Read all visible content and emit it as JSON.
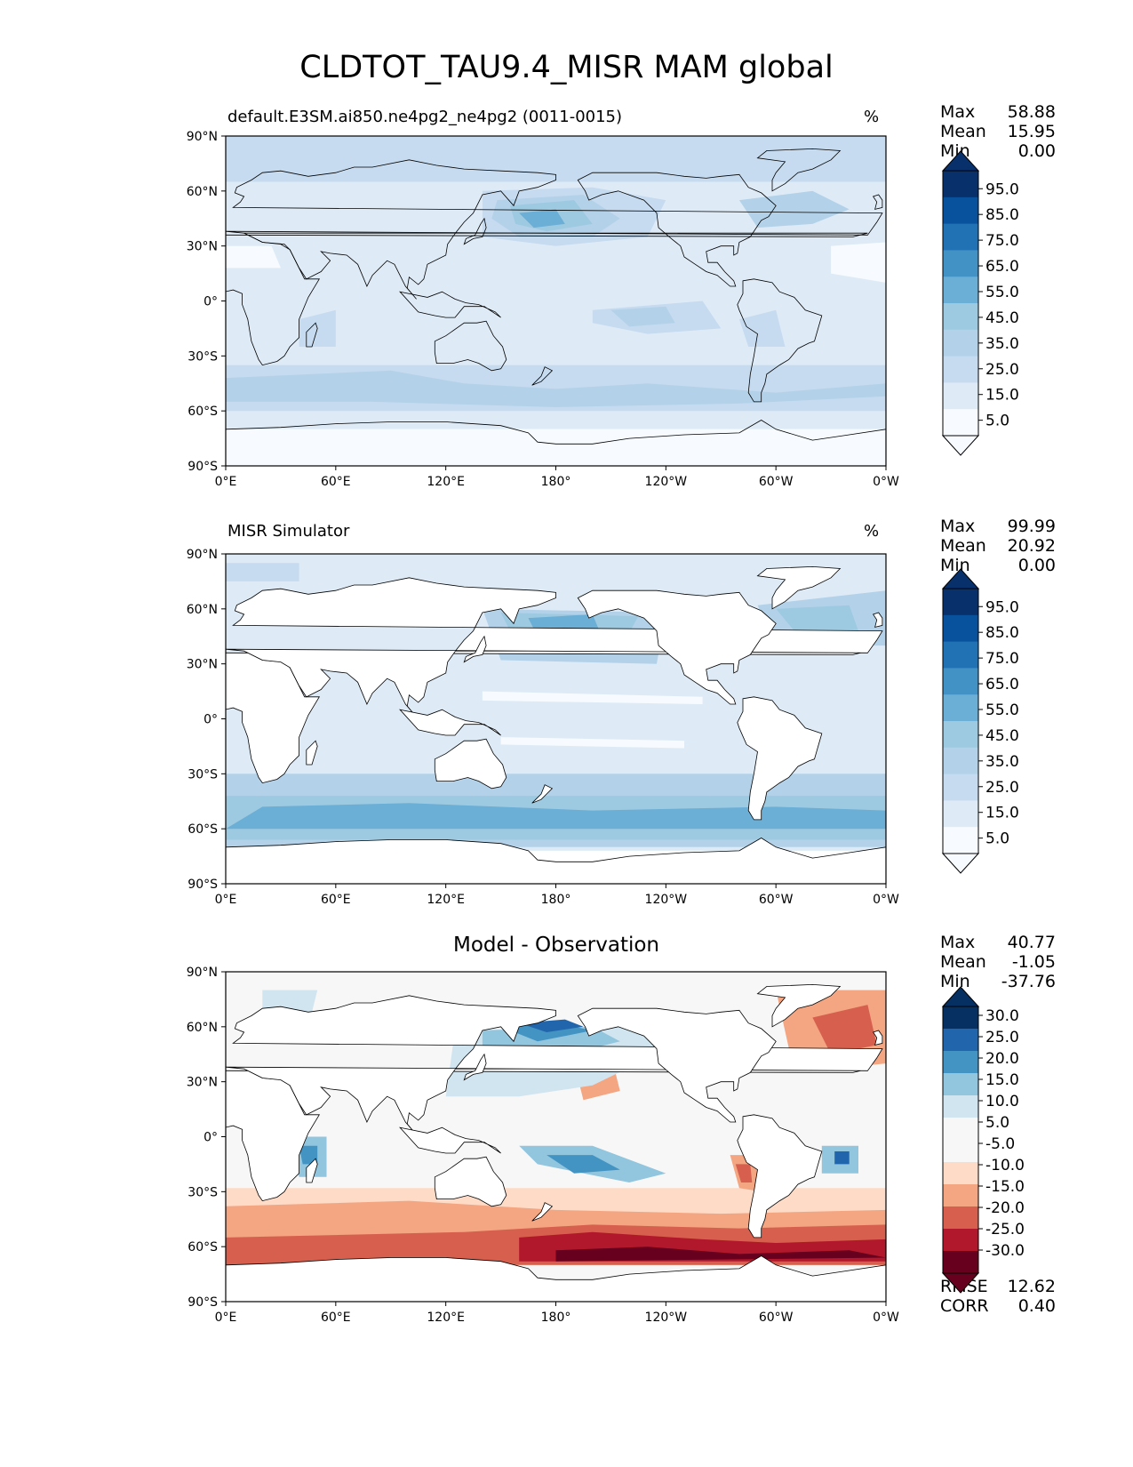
{
  "figure": {
    "title": "CLDTOT_TAU9.4_MISR MAM global"
  },
  "axes": {
    "lat_ticks": [
      "90°N",
      "60°N",
      "30°N",
      "0°",
      "30°S",
      "60°S",
      "90°S"
    ],
    "lon_ticks": [
      "0°E",
      "60°E",
      "120°E",
      "180°",
      "120°W",
      "60°W",
      "0°W"
    ]
  },
  "panels": [
    {
      "id": "test",
      "title_left": "default.E3SM.ai850.ne4pg2_ne4pg2 (0011-0015)",
      "title_right": "%",
      "stats": [
        {
          "label": "Max",
          "value": "58.88"
        },
        {
          "label": "Mean",
          "value": "15.95"
        },
        {
          "label": "Min",
          "value": "0.00"
        }
      ],
      "colorbar_labels": [
        "95.0",
        "85.0",
        "75.0",
        "65.0",
        "55.0",
        "45.0",
        "35.0",
        "25.0",
        "15.0",
        "5.0"
      ]
    },
    {
      "id": "reference",
      "title_left": "MISR Simulator",
      "title_right": "%",
      "stats": [
        {
          "label": "Max",
          "value": "99.99"
        },
        {
          "label": "Mean",
          "value": "20.92"
        },
        {
          "label": "Min",
          "value": "0.00"
        }
      ],
      "colorbar_labels": [
        "95.0",
        "85.0",
        "75.0",
        "65.0",
        "55.0",
        "45.0",
        "35.0",
        "25.0",
        "15.0",
        "5.0"
      ]
    },
    {
      "id": "diff",
      "title_center": "Model - Observation",
      "stats": [
        {
          "label": "Max",
          "value": "40.77"
        },
        {
          "label": "Mean",
          "value": "-1.05"
        },
        {
          "label": "Min",
          "value": "-37.76"
        }
      ],
      "colorbar_labels": [
        "30.0",
        "25.0",
        "20.0",
        "15.0",
        "10.0",
        "5.0",
        "-5.0",
        "-10.0",
        "-15.0",
        "-20.0",
        "-25.0",
        "-30.0"
      ],
      "metrics": [
        {
          "label": "RMSE",
          "value": "12.62"
        },
        {
          "label": "CORR",
          "value": "0.40"
        }
      ]
    }
  ],
  "colors": {
    "blues": [
      "#f7fbff",
      "#deebf7",
      "#c6dbef",
      "#b3d2e9",
      "#9ecae1",
      "#6baed6",
      "#4292c6",
      "#2171b5",
      "#08519c",
      "#08306b"
    ],
    "diverging": [
      "#67001f",
      "#b2182b",
      "#d6604d",
      "#f4a582",
      "#fddbc7",
      "#f7f7f7",
      "#f7f7f7",
      "#d1e5f0",
      "#92c5de",
      "#4393c3",
      "#2166ac",
      "#053061"
    ]
  },
  "chart_data": [
    {
      "type": "heatmap",
      "title": "default.E3SM.ai850.ne4pg2_ne4pg2 (0011-0015)",
      "units": "%",
      "xlim": [
        0,
        360
      ],
      "ylim": [
        -90,
        90
      ],
      "colorbar_levels": [
        5,
        15,
        25,
        35,
        45,
        55,
        65,
        75,
        85,
        95
      ],
      "stats": {
        "max": 58.88,
        "mean": 15.95,
        "min": 0.0
      }
    },
    {
      "type": "heatmap",
      "title": "MISR Simulator",
      "units": "%",
      "xlim": [
        0,
        360
      ],
      "ylim": [
        -90,
        90
      ],
      "colorbar_levels": [
        5,
        15,
        25,
        35,
        45,
        55,
        65,
        75,
        85,
        95
      ],
      "stats": {
        "max": 99.99,
        "mean": 20.92,
        "min": 0.0
      }
    },
    {
      "type": "heatmap",
      "title": "Model - Observation",
      "xlim": [
        0,
        360
      ],
      "ylim": [
        -90,
        90
      ],
      "colorbar_levels": [
        -30,
        -25,
        -20,
        -15,
        -10,
        -5,
        5,
        10,
        15,
        20,
        25,
        30
      ],
      "stats": {
        "max": 40.77,
        "mean": -1.05,
        "min": -37.76,
        "rmse": 12.62,
        "corr": 0.4
      }
    }
  ]
}
